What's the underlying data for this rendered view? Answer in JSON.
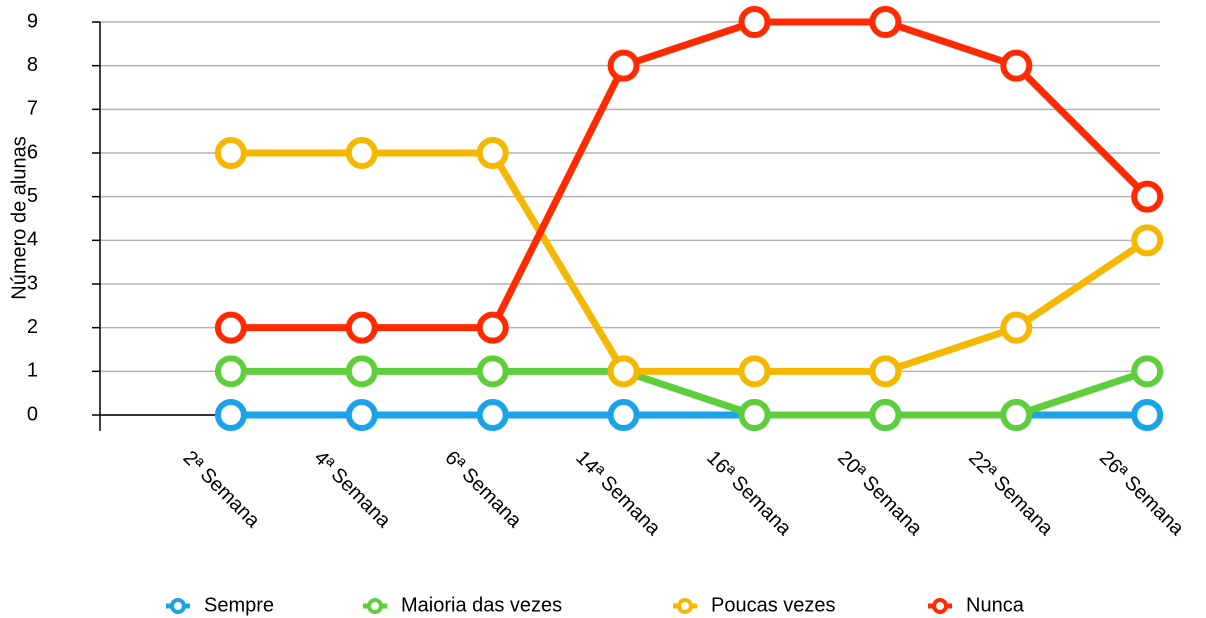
{
  "chart_data": {
    "type": "line",
    "y_label": "Número de alunas",
    "categories": [
      null,
      "2ª Semana",
      "4ª Semana",
      "6ª Semana",
      "14ª Semana",
      "16ª Semana",
      "20ª Semana",
      "22ª Semana",
      "26ª Semana"
    ],
    "series": [
      {
        "name": "Sempre",
        "color": "#1aa3e8",
        "values": [
          null,
          0,
          0,
          0,
          0,
          0,
          0,
          0,
          0
        ]
      },
      {
        "name": "Maioria das vezes",
        "color": "#5ecf3a",
        "values": [
          null,
          1,
          1,
          1,
          1,
          0,
          0,
          0,
          1
        ]
      },
      {
        "name": "Poucas vezes",
        "color": "#f5b800",
        "values": [
          null,
          6,
          6,
          6,
          1,
          1,
          1,
          2,
          4
        ]
      },
      {
        "name": "Nunca",
        "color": "#ff2a00",
        "values": [
          null,
          2,
          2,
          2,
          8,
          9,
          9,
          8,
          5
        ]
      }
    ],
    "ylim": [
      0,
      9
    ],
    "yticks": [
      0,
      1,
      2,
      3,
      4,
      5,
      6,
      7,
      8,
      9
    ],
    "grid": true,
    "legend": "bottom"
  }
}
